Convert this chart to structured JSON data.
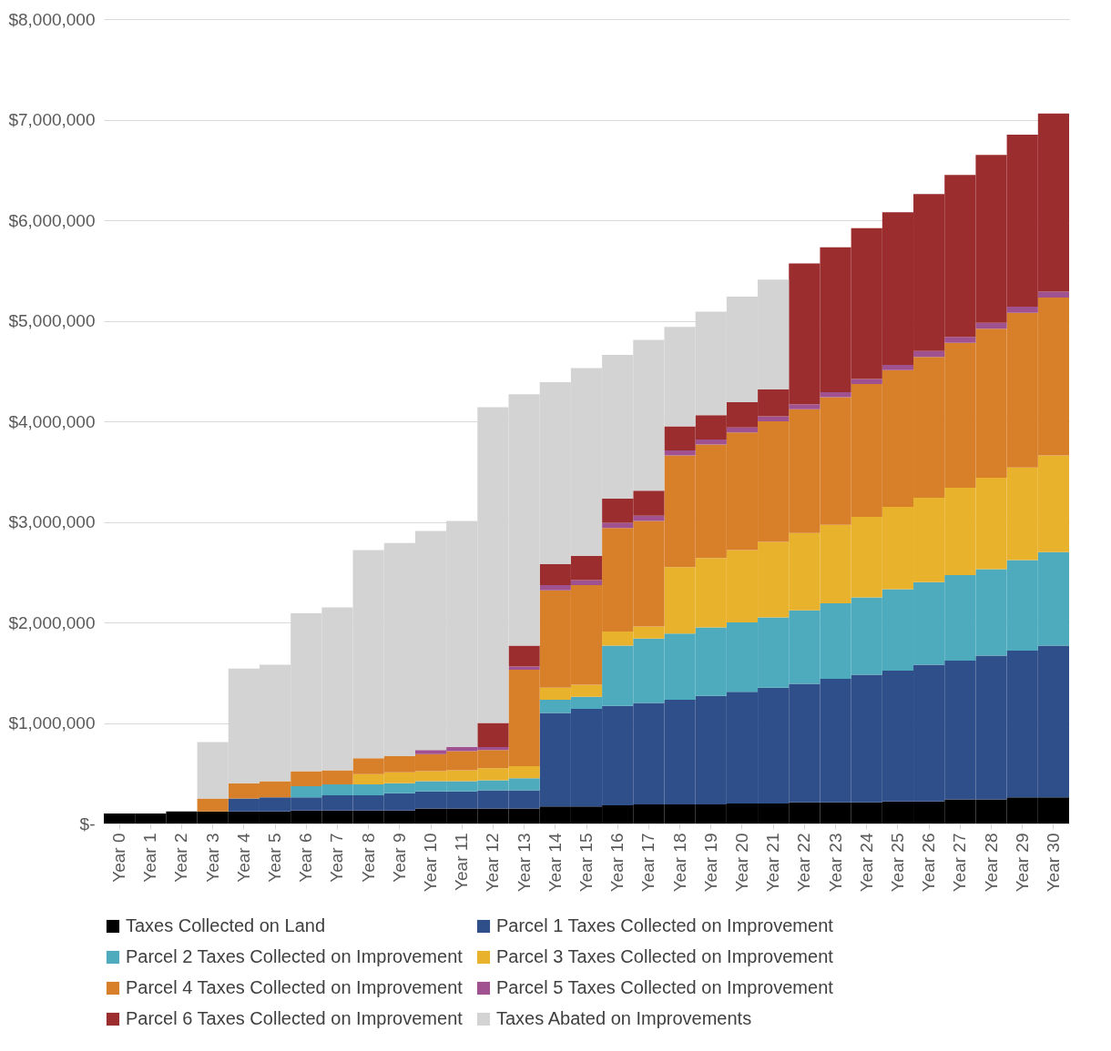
{
  "chart_data": {
    "type": "bar",
    "stacked": true,
    "grid": "y",
    "legend": "bottom",
    "categories": [
      "Year 0",
      "Year 1",
      "Year 2",
      "Year 3",
      "Year 4",
      "Year 5",
      "Year 6",
      "Year 7",
      "Year 8",
      "Year 9",
      "Year 10",
      "Year 11",
      "Year 12",
      "Year 13",
      "Year 14",
      "Year 15",
      "Year 16",
      "Year 17",
      "Year 18",
      "Year 19",
      "Year 20",
      "Year 21",
      "Year 22",
      "Year 23",
      "Year 24",
      "Year 25",
      "Year 26",
      "Year 27",
      "Year 28",
      "Year 29",
      "Year 30"
    ],
    "ylim": [
      0,
      8000000
    ],
    "yticks": [
      {
        "value": 0,
        "label": "$-"
      },
      {
        "value": 1000000,
        "label": "$1,000,000"
      },
      {
        "value": 2000000,
        "label": "$2,000,000"
      },
      {
        "value": 3000000,
        "label": "$3,000,000"
      },
      {
        "value": 4000000,
        "label": "$4,000,000"
      },
      {
        "value": 5000000,
        "label": "$5,000,000"
      },
      {
        "value": 6000000,
        "label": "$6,000,000"
      },
      {
        "value": 7000000,
        "label": "$7,000,000"
      },
      {
        "value": 8000000,
        "label": "$8,000,000"
      }
    ],
    "series": [
      {
        "name": "Taxes Collected on Land",
        "color": "#000000",
        "values": [
          100000,
          100000,
          120000,
          120000,
          120000,
          120000,
          130000,
          130000,
          130000,
          130000,
          150000,
          150000,
          150000,
          150000,
          170000,
          170000,
          180000,
          190000,
          190000,
          190000,
          200000,
          200000,
          210000,
          210000,
          210000,
          220000,
          220000,
          240000,
          240000,
          260000,
          260000
        ]
      },
      {
        "name": "Parcel 1 Taxes Collected on Improvement",
        "color": "#2e4f8a",
        "values": [
          null,
          null,
          null,
          null,
          130000,
          140000,
          130000,
          150000,
          150000,
          170000,
          170000,
          170000,
          180000,
          180000,
          930000,
          970000,
          990000,
          1010000,
          1040000,
          1080000,
          1110000,
          1150000,
          1180000,
          1230000,
          1270000,
          1300000,
          1360000,
          1380000,
          1430000,
          1460000,
          1510000
        ]
      },
      {
        "name": "Parcel 2 Taxes Collected on Improvement",
        "color": "#4eabbd",
        "values": [
          null,
          null,
          null,
          null,
          null,
          null,
          110000,
          110000,
          110000,
          100000,
          100000,
          100000,
          100000,
          120000,
          130000,
          120000,
          600000,
          640000,
          660000,
          680000,
          690000,
          700000,
          730000,
          750000,
          770000,
          810000,
          820000,
          850000,
          860000,
          900000,
          930000
        ]
      },
      {
        "name": "Parcel 3 Taxes Collected on Improvement",
        "color": "#e9b22c",
        "values": [
          null,
          null,
          null,
          null,
          null,
          null,
          null,
          null,
          100000,
          110000,
          100000,
          110000,
          120000,
          120000,
          120000,
          120000,
          140000,
          120000,
          660000,
          690000,
          720000,
          750000,
          770000,
          780000,
          800000,
          820000,
          840000,
          870000,
          910000,
          920000,
          960000
        ]
      },
      {
        "name": "Parcel 4 Taxes Collected on Improvement",
        "color": "#d77f29",
        "values": [
          null,
          null,
          null,
          130000,
          150000,
          160000,
          150000,
          140000,
          160000,
          160000,
          170000,
          190000,
          180000,
          960000,
          970000,
          990000,
          1030000,
          1050000,
          1110000,
          1130000,
          1170000,
          1200000,
          1230000,
          1270000,
          1320000,
          1360000,
          1400000,
          1440000,
          1480000,
          1540000,
          1570000
        ]
      },
      {
        "name": "Parcel 5 Taxes Collected on Improvement",
        "color": "#a0518f",
        "values": [
          null,
          null,
          null,
          null,
          null,
          null,
          null,
          null,
          null,
          null,
          40000,
          40000,
          30000,
          30000,
          50000,
          50000,
          50000,
          50000,
          50000,
          50000,
          50000,
          50000,
          50000,
          50000,
          50000,
          50000,
          60000,
          60000,
          60000,
          60000,
          60000
        ]
      },
      {
        "name": "Parcel 6 Taxes Collected on Improvement",
        "color": "#9b2d2e",
        "values": [
          null,
          null,
          null,
          null,
          null,
          null,
          null,
          null,
          null,
          null,
          null,
          null,
          240000,
          210000,
          210000,
          240000,
          240000,
          250000,
          240000,
          240000,
          250000,
          270000,
          1400000,
          1440000,
          1500000,
          1520000,
          1560000,
          1610000,
          1670000,
          1710000,
          1770000
        ]
      },
      {
        "name": "Taxes Abated on Improvements",
        "color": "#d3d3d3",
        "values": [
          null,
          null,
          null,
          560000,
          1140000,
          1160000,
          1570000,
          1620000,
          2070000,
          2120000,
          2180000,
          2250000,
          3140000,
          2500000,
          1810000,
          1870000,
          1430000,
          1500000,
          990000,
          1030000,
          1050000,
          1090000,
          null,
          null,
          null,
          null,
          null,
          null,
          null,
          null,
          null
        ]
      }
    ]
  }
}
